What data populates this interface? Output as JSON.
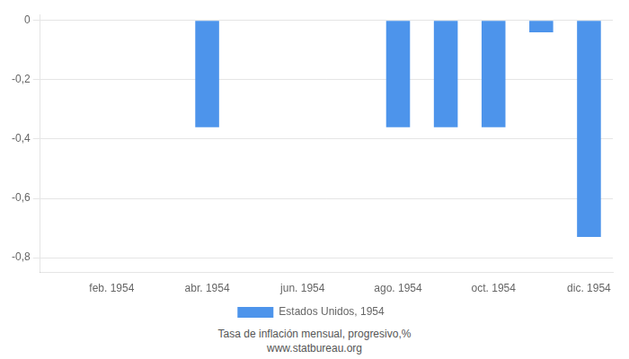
{
  "chart_data": {
    "type": "bar",
    "subtitle": [
      "Tasa de inflación mensual, progresivo,%",
      "www.statbureau.org"
    ],
    "categories": [
      null,
      "feb. 1954",
      null,
      "abr. 1954",
      null,
      "jun. 1954",
      null,
      "ago. 1954",
      null,
      "oct. 1954",
      null,
      "dic. 1954"
    ],
    "series": [
      {
        "name": "Estados Unidos, 1954",
        "color": "#4d94eb",
        "values": [
          0,
          0,
          0,
          -0.36,
          0,
          0,
          0,
          -0.36,
          -0.36,
          -0.36,
          -0.04,
          -0.73
        ]
      }
    ],
    "ylim": [
      -0.85,
      0.02
    ],
    "yticks": [
      0,
      {
        "value": -0.2,
        "label": "-0,2"
      },
      {
        "value": -0.4,
        "label": "-0,4"
      },
      {
        "value": -0.6,
        "label": "-0,6"
      },
      {
        "value": -0.8,
        "label": "-0,8"
      }
    ],
    "grid": true,
    "legend": "bottom"
  }
}
